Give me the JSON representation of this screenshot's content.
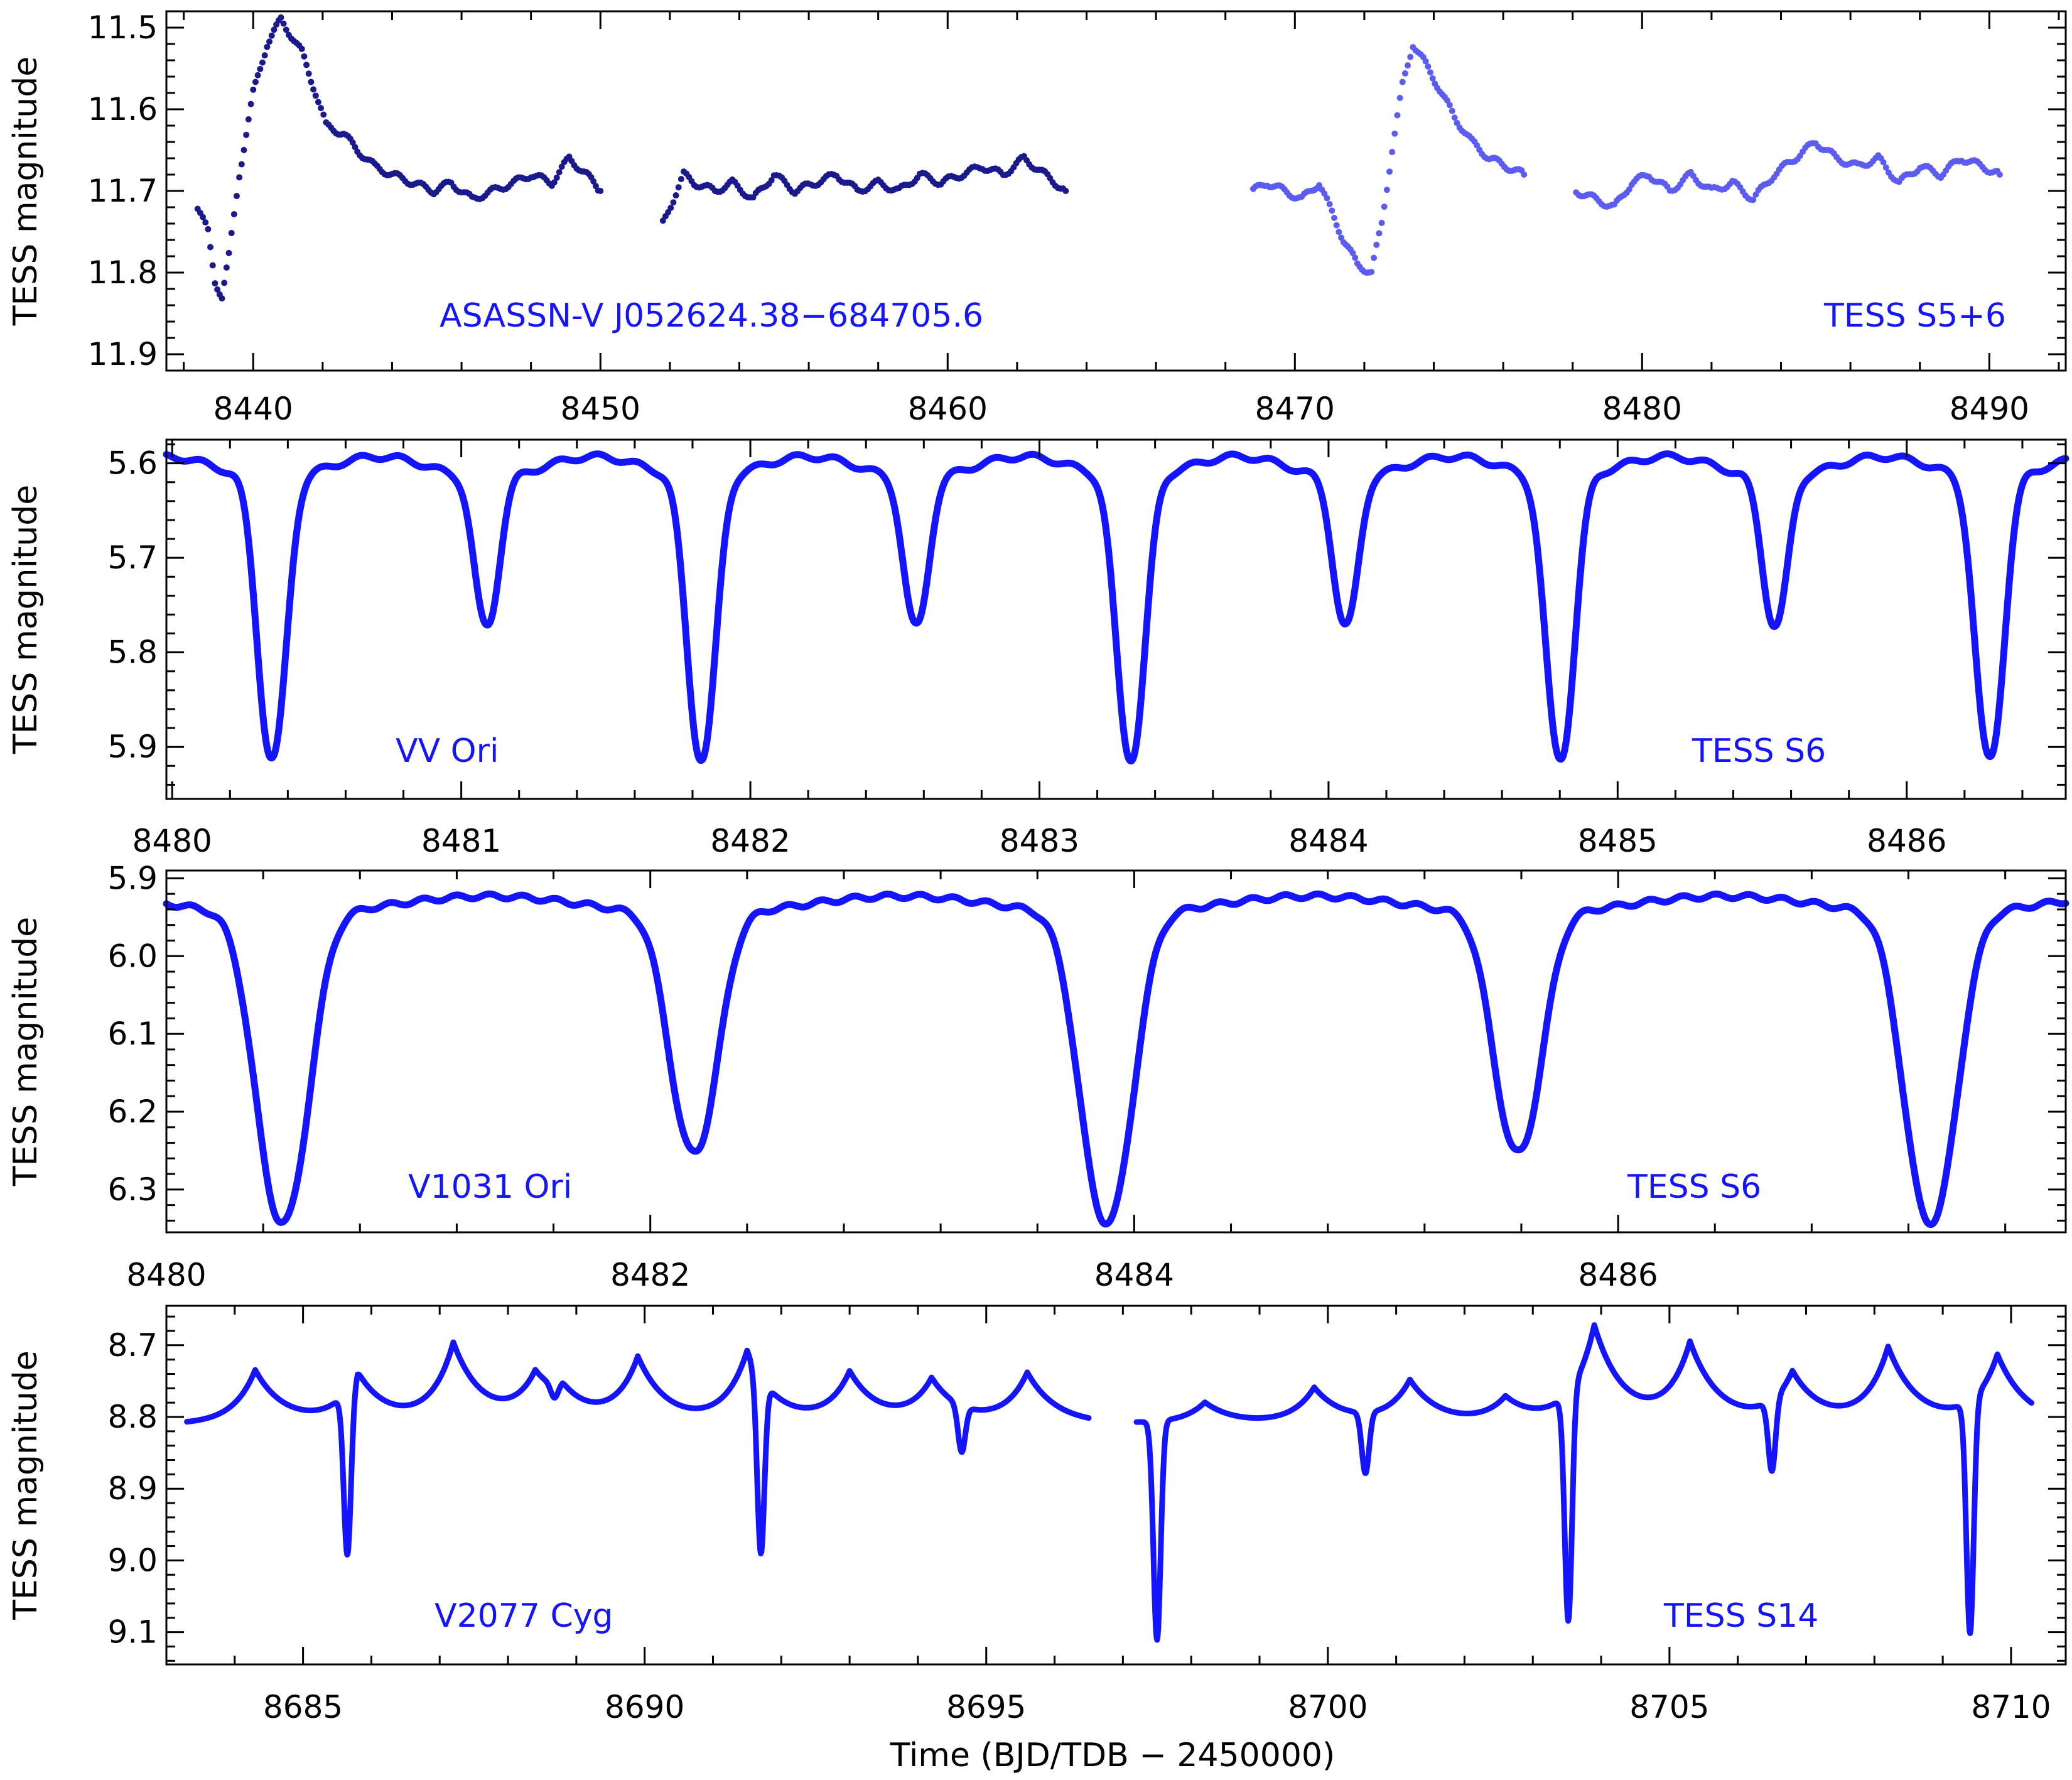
{
  "figure": {
    "ylabel": "TESS magnitude",
    "xlabel": "Time   (BJD/TDB − 2450000)"
  },
  "chart_data": [
    {
      "type": "scatter",
      "star_label": "ASASSN-V J052624.38−684705.6",
      "sector_label": "TESS S5+6",
      "xlim": [
        8437.5,
        8492.2
      ],
      "ylim": [
        11.92,
        11.48
      ],
      "y_inverted": true,
      "xticks": [
        8440,
        8450,
        8460,
        8470,
        8480,
        8490
      ],
      "xtick_labels": [
        "8440",
        "8450",
        "8460",
        "8470",
        "8480",
        "8490"
      ],
      "yticks": [
        11.5,
        11.6,
        11.7,
        11.8,
        11.9
      ],
      "ytick_labels": [
        "11.5",
        "11.6",
        "11.7",
        "11.8",
        "11.9"
      ],
      "series": [
        {
          "color": "#1a1a8c",
          "x": [
            8438.4,
            8438.7,
            8438.9,
            8439.1,
            8439.3,
            8439.6,
            8440.0,
            8440.4,
            8440.8,
            8441.4,
            8441.8,
            8442.1,
            8442.6,
            8443.0,
            8443.5,
            8444.0,
            8444.6,
            8445.2,
            8445.7,
            8446.3,
            8446.9,
            8447.5,
            8448.0,
            8448.6,
            8449.1,
            8449.6,
            8450.0,
            8451.8,
            8452.1,
            8452.4,
            8452.7,
            8453.3,
            8453.8,
            8454.4,
            8455.0,
            8455.6,
            8456.2,
            8456.8,
            8457.4,
            8458.0,
            8458.6,
            8459.2,
            8459.8,
            8460.4,
            8461.0,
            8461.6,
            8462.2,
            8462.8,
            8463.4
          ],
          "y": [
            11.72,
            11.75,
            11.81,
            11.83,
            11.78,
            11.68,
            11.58,
            11.52,
            11.49,
            11.53,
            11.58,
            11.62,
            11.63,
            11.65,
            11.67,
            11.68,
            11.69,
            11.7,
            11.69,
            11.71,
            11.7,
            11.69,
            11.68,
            11.69,
            11.66,
            11.68,
            11.7,
            11.74,
            11.71,
            11.68,
            11.69,
            11.7,
            11.69,
            11.71,
            11.68,
            11.7,
            11.69,
            11.68,
            11.7,
            11.69,
            11.7,
            11.68,
            11.69,
            11.68,
            11.67,
            11.68,
            11.66,
            11.68,
            11.7
          ]
        },
        {
          "color": "#5c5cf0",
          "x": [
            8468.8,
            8469.2,
            8469.7,
            8470.2,
            8470.7,
            8471.0,
            8471.4,
            8471.8,
            8472.2,
            8472.5,
            8472.8,
            8473.1,
            8473.4,
            8473.7,
            8474.1,
            8474.6,
            8475.1,
            8475.6,
            8476.1,
            8476.6,
            8478.1,
            8479.2,
            8479.7,
            8480.2,
            8480.8,
            8481.4,
            8482.0,
            8482.6,
            8483.2,
            8483.8,
            8484.4,
            8485.0,
            8485.6,
            8486.2,
            8486.8,
            8487.4,
            8488.0,
            8488.6,
            8489.2,
            8489.8,
            8490.3
          ],
          "y": [
            11.7,
            11.69,
            11.7,
            11.71,
            11.69,
            11.72,
            11.76,
            11.79,
            11.8,
            11.74,
            11.65,
            11.57,
            11.52,
            11.54,
            11.57,
            11.61,
            11.64,
            11.66,
            11.67,
            11.68,
            11.7,
            11.72,
            11.69,
            11.68,
            11.7,
            11.68,
            11.7,
            11.69,
            11.71,
            11.68,
            11.66,
            11.64,
            11.66,
            11.67,
            11.66,
            11.69,
            11.67,
            11.68,
            11.66,
            11.67,
            11.68
          ]
        }
      ]
    },
    {
      "type": "line",
      "star_label": "VV Ori",
      "sector_label": "TESS S6",
      "xlim": [
        8479.98,
        8486.55
      ],
      "ylim": [
        5.955,
        5.575
      ],
      "y_inverted": true,
      "xticks": [
        8480,
        8481,
        8482,
        8483,
        8484,
        8485,
        8486
      ],
      "xtick_labels": [
        "8480",
        "8481",
        "8482",
        "8483",
        "8484",
        "8485",
        "8486"
      ],
      "yticks": [
        5.6,
        5.7,
        5.8,
        5.9
      ],
      "ytick_labels": [
        "5.6",
        "5.7",
        "5.8",
        "5.9"
      ],
      "series": [
        {
          "color": "#1414ff",
          "model": "eclipsing",
          "baseline": 5.605,
          "primary": {
            "t0": 8480.345,
            "period": 1.4854,
            "depth": 0.295,
            "width": 0.11
          },
          "secondary": {
            "t0": 8481.088,
            "period": 1.4854,
            "depth": 0.155,
            "width": 0.095
          },
          "x_range": [
            8479.98,
            8486.55
          ]
        }
      ]
    },
    {
      "type": "line",
      "star_label": "V1031 Ori",
      "sector_label": "TESS S6",
      "xlim": [
        8480.0,
        8487.85
      ],
      "ylim": [
        6.355,
        5.89
      ],
      "y_inverted": true,
      "xticks": [
        8480,
        8482,
        8484,
        8486
      ],
      "xtick_labels": [
        "8480",
        "8482",
        "8484",
        "8486"
      ],
      "yticks": [
        5.9,
        6.0,
        6.1,
        6.2,
        6.3
      ],
      "ytick_labels": [
        "5.9",
        "6.0",
        "6.1",
        "6.2",
        "6.3"
      ],
      "series": [
        {
          "color": "#1414ff",
          "model": "eclipsing",
          "baseline": 5.935,
          "primary": {
            "t0": 8480.48,
            "period": 3.4055,
            "depth": 0.395,
            "width": 0.24
          },
          "secondary": {
            "t0": 8482.18,
            "period": 3.4055,
            "depth": 0.305,
            "width": 0.22
          },
          "x_range": [
            8480.0,
            8487.85
          ]
        }
      ]
    },
    {
      "type": "scatter",
      "star_label": "V2077 Cyg",
      "sector_label": "TESS S14",
      "xlim": [
        8683.0,
        8710.8
      ],
      "ylim": [
        9.145,
        8.645
      ],
      "y_inverted": true,
      "xticks": [
        8685,
        8690,
        8695,
        8700,
        8705,
        8710
      ],
      "xtick_labels": [
        "8685",
        "8690",
        "8695",
        "8700",
        "8705",
        "8710"
      ],
      "yticks": [
        8.7,
        8.8,
        8.9,
        9.0,
        9.1
      ],
      "ytick_labels": [
        "8.7",
        "8.8",
        "8.9",
        "9.0",
        "9.1"
      ],
      "series": [
        {
          "color": "#1414ff",
          "model": "heartbeat",
          "baseline": 8.81,
          "segments": [
            [
              8683.3,
              8696.5
            ],
            [
              8697.2,
              8710.3
            ]
          ],
          "peaks": [
            [
              8684.3,
              8.735
            ],
            [
              8685.8,
              8.74
            ],
            [
              8687.2,
              8.7
            ],
            [
              8688.4,
              8.75
            ],
            [
              8688.8,
              8.78
            ],
            [
              8689.9,
              8.72
            ],
            [
              8691.5,
              8.71
            ],
            [
              8693.0,
              8.74
            ],
            [
              8694.2,
              8.75
            ],
            [
              8695.6,
              8.74
            ],
            [
              8698.2,
              8.78
            ],
            [
              8699.8,
              8.76
            ],
            [
              8701.2,
              8.75
            ],
            [
              8702.6,
              8.775
            ],
            [
              8703.9,
              8.675
            ],
            [
              8705.3,
              8.7
            ],
            [
              8706.8,
              8.74
            ],
            [
              8708.2,
              8.705
            ],
            [
              8709.8,
              8.715
            ]
          ],
          "eclipses": [
            [
              8685.65,
              9.04
            ],
            [
              8688.68,
              8.83
            ],
            [
              8691.7,
              9.055
            ],
            [
              8694.64,
              8.875
            ],
            [
              8697.5,
              9.115
            ],
            [
              8700.55,
              8.895
            ],
            [
              8703.52,
              9.13
            ],
            [
              8706.5,
              8.91
            ],
            [
              8709.4,
              9.135
            ]
          ]
        }
      ]
    }
  ]
}
